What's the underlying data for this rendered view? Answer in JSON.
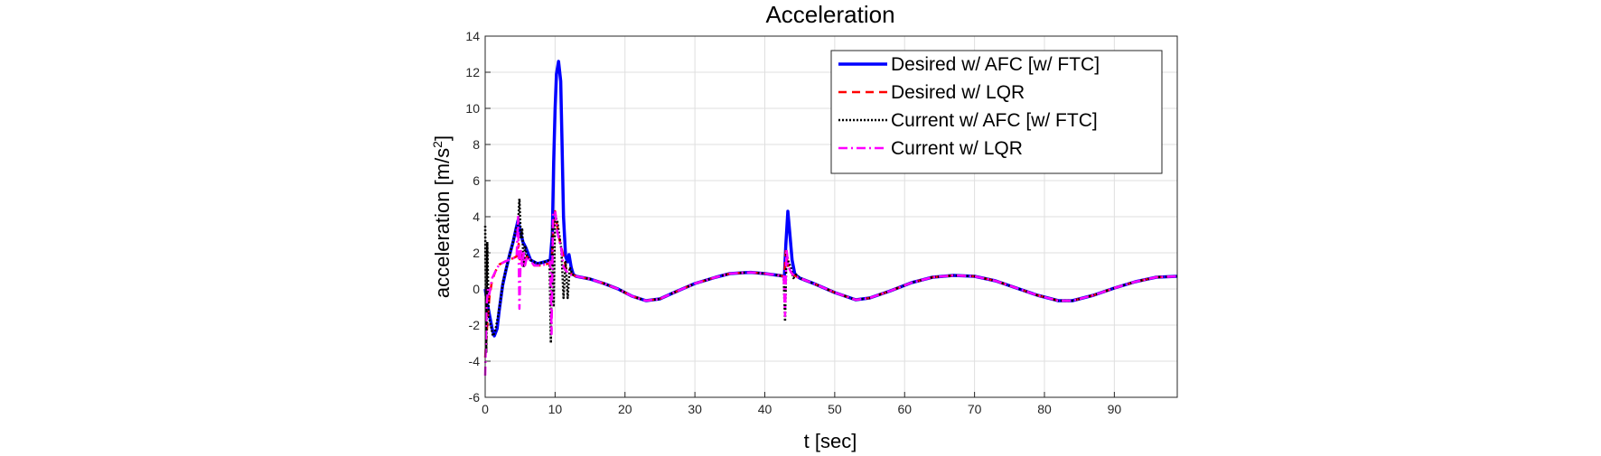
{
  "chart_data": {
    "type": "line",
    "title": "Acceleration",
    "xlabel": "t [sec]",
    "ylabel": {
      "main": "acceleration [m/s",
      "sup": "2",
      "end": "]"
    },
    "xlim": [
      0,
      99
    ],
    "ylim": [
      -6,
      14
    ],
    "xticks": [
      0,
      10,
      20,
      30,
      40,
      50,
      60,
      70,
      80,
      90
    ],
    "yticks": [
      -6,
      -4,
      -2,
      0,
      2,
      4,
      6,
      8,
      10,
      12,
      14
    ],
    "grid": true,
    "legend_position": "top-right",
    "series": [
      {
        "name": "Desired w/ AFC [w/ FTC]",
        "color": "#0000ff",
        "style": "solid",
        "points": [
          [
            0,
            0
          ],
          [
            0.3,
            -0.8
          ],
          [
            0.6,
            -1.4
          ],
          [
            1,
            -2.2
          ],
          [
            1.3,
            -2.6
          ],
          [
            1.7,
            -2.2
          ],
          [
            2,
            -1.2
          ],
          [
            2.5,
            0.2
          ],
          [
            3,
            1.1
          ],
          [
            3.5,
            1.9
          ],
          [
            4,
            2.6
          ],
          [
            4.4,
            3.3
          ],
          [
            4.7,
            3.8
          ],
          [
            5,
            3.2
          ],
          [
            5.4,
            2.6
          ],
          [
            5.8,
            2.3
          ],
          [
            6.5,
            1.6
          ],
          [
            7.5,
            1.4
          ],
          [
            8.5,
            1.5
          ],
          [
            9.3,
            1.6
          ],
          [
            9.6,
            3
          ],
          [
            9.8,
            7
          ],
          [
            10,
            10
          ],
          [
            10.2,
            11.9
          ],
          [
            10.5,
            12.6
          ],
          [
            10.8,
            11.5
          ],
          [
            11,
            8
          ],
          [
            11.2,
            4
          ],
          [
            11.5,
            1.8
          ],
          [
            11.8,
            1.5
          ],
          [
            12,
            1.9
          ],
          [
            12.3,
            1.2
          ],
          [
            12.6,
            0.8
          ],
          [
            13,
            0.7
          ],
          [
            15,
            0.55
          ],
          [
            17,
            0.3
          ],
          [
            19,
            0
          ],
          [
            21,
            -0.4
          ],
          [
            23,
            -0.65
          ],
          [
            25,
            -0.55
          ],
          [
            27,
            -0.2
          ],
          [
            30,
            0.3
          ],
          [
            33,
            0.65
          ],
          [
            35,
            0.85
          ],
          [
            37,
            0.9
          ],
          [
            38,
            0.92
          ],
          [
            40,
            0.85
          ],
          [
            42,
            0.75
          ],
          [
            42.8,
            0.7
          ],
          [
            43,
            2.4
          ],
          [
            43.3,
            4.3
          ],
          [
            43.6,
            3
          ],
          [
            43.9,
            1.6
          ],
          [
            44.3,
            0.8
          ],
          [
            45,
            0.6
          ],
          [
            47,
            0.3
          ],
          [
            50,
            -0.2
          ],
          [
            53,
            -0.6
          ],
          [
            55,
            -0.5
          ],
          [
            58,
            -0.1
          ],
          [
            61,
            0.35
          ],
          [
            64,
            0.65
          ],
          [
            67,
            0.75
          ],
          [
            70,
            0.7
          ],
          [
            73,
            0.45
          ],
          [
            76,
            0.05
          ],
          [
            79,
            -0.35
          ],
          [
            82,
            -0.65
          ],
          [
            84,
            -0.65
          ],
          [
            87,
            -0.35
          ],
          [
            90,
            0.05
          ],
          [
            93,
            0.4
          ],
          [
            96,
            0.65
          ],
          [
            99,
            0.7
          ]
        ]
      },
      {
        "name": "Desired w/ LQR",
        "color": "#ff0000",
        "style": "dashed",
        "points": [
          [
            0,
            -3.8
          ],
          [
            0.3,
            -2
          ],
          [
            0.6,
            -0.5
          ],
          [
            1,
            0.5
          ],
          [
            1.5,
            1
          ],
          [
            2,
            1.35
          ],
          [
            3,
            1.55
          ],
          [
            4,
            1.7
          ],
          [
            4.5,
            1.8
          ],
          [
            4.8,
            2.5
          ],
          [
            5,
            1.5
          ],
          [
            5.3,
            1.9
          ],
          [
            5.6,
            1.5
          ],
          [
            6,
            1.8
          ],
          [
            7,
            1.3
          ],
          [
            8,
            1.3
          ],
          [
            9,
            1.4
          ],
          [
            9.5,
            1.5
          ],
          [
            9.8,
            3.6
          ],
          [
            10,
            4.3
          ],
          [
            10.3,
            3.5
          ],
          [
            10.6,
            2.8
          ],
          [
            10.9,
            2.3
          ],
          [
            11.2,
            1.8
          ],
          [
            11.6,
            1.1
          ],
          [
            12,
            0.9
          ],
          [
            13,
            0.7
          ],
          [
            15,
            0.55
          ],
          [
            17,
            0.3
          ],
          [
            19,
            0
          ],
          [
            21,
            -0.4
          ],
          [
            23,
            -0.65
          ],
          [
            25,
            -0.55
          ],
          [
            27,
            -0.2
          ],
          [
            30,
            0.3
          ],
          [
            33,
            0.65
          ],
          [
            35,
            0.85
          ],
          [
            37,
            0.9
          ],
          [
            38,
            0.92
          ],
          [
            40,
            0.85
          ],
          [
            42,
            0.75
          ],
          [
            42.8,
            0.7
          ],
          [
            43,
            2.1
          ],
          [
            43.3,
            1.3
          ],
          [
            43.6,
            1
          ],
          [
            44,
            0.8
          ],
          [
            45,
            0.6
          ],
          [
            47,
            0.3
          ],
          [
            50,
            -0.2
          ],
          [
            53,
            -0.6
          ],
          [
            55,
            -0.5
          ],
          [
            58,
            -0.1
          ],
          [
            61,
            0.35
          ],
          [
            64,
            0.65
          ],
          [
            67,
            0.75
          ],
          [
            70,
            0.7
          ],
          [
            73,
            0.45
          ],
          [
            76,
            0.05
          ],
          [
            79,
            -0.35
          ],
          [
            82,
            -0.65
          ],
          [
            84,
            -0.65
          ],
          [
            87,
            -0.35
          ],
          [
            90,
            0.05
          ],
          [
            93,
            0.4
          ],
          [
            96,
            0.65
          ],
          [
            99,
            0.7
          ]
        ]
      },
      {
        "name": "Current w/ AFC [w/ FTC]",
        "color": "#000000",
        "style": "dotted",
        "points": [
          [
            0,
            3.5
          ],
          [
            0.15,
            -3.5
          ],
          [
            0.3,
            2.6
          ],
          [
            0.5,
            -1.5
          ],
          [
            0.8,
            -2
          ],
          [
            1.1,
            -2.6
          ],
          [
            1.4,
            -2.4
          ],
          [
            1.8,
            -1.6
          ],
          [
            2.2,
            -0.6
          ],
          [
            2.6,
            0.5
          ],
          [
            3,
            1.1
          ],
          [
            3.5,
            1.9
          ],
          [
            4,
            2.6
          ],
          [
            4.4,
            3.3
          ],
          [
            4.7,
            3.6
          ],
          [
            4.9,
            5
          ],
          [
            5.1,
            2.8
          ],
          [
            5.3,
            3.3
          ],
          [
            5.5,
            1.2
          ],
          [
            5.7,
            2.4
          ],
          [
            6,
            1.8
          ],
          [
            6.5,
            1.6
          ],
          [
            7.5,
            1.4
          ],
          [
            8.5,
            1.5
          ],
          [
            9.2,
            1.6
          ],
          [
            9.4,
            -3
          ],
          [
            9.6,
            3.5
          ],
          [
            9.8,
            -1
          ],
          [
            10,
            4
          ],
          [
            10.3,
            3.8
          ],
          [
            10.6,
            3
          ],
          [
            10.9,
            2.2
          ],
          [
            11.2,
            -0.5
          ],
          [
            11.5,
            1.5
          ],
          [
            11.8,
            -0.5
          ],
          [
            12.1,
            1.2
          ],
          [
            12.5,
            0.8
          ],
          [
            13,
            0.7
          ],
          [
            15,
            0.55
          ],
          [
            17,
            0.3
          ],
          [
            19,
            0
          ],
          [
            21,
            -0.4
          ],
          [
            23,
            -0.65
          ],
          [
            25,
            -0.55
          ],
          [
            27,
            -0.2
          ],
          [
            30,
            0.3
          ],
          [
            33,
            0.65
          ],
          [
            35,
            0.85
          ],
          [
            37,
            0.9
          ],
          [
            38,
            0.92
          ],
          [
            40,
            0.85
          ],
          [
            42,
            0.75
          ],
          [
            42.7,
            0.7
          ],
          [
            42.9,
            -1.8
          ],
          [
            43.1,
            2
          ],
          [
            43.4,
            1.5
          ],
          [
            43.7,
            1.2
          ],
          [
            44.1,
            0.6
          ],
          [
            44.5,
            0.8
          ],
          [
            45,
            0.6
          ],
          [
            47,
            0.3
          ],
          [
            50,
            -0.2
          ],
          [
            53,
            -0.6
          ],
          [
            55,
            -0.5
          ],
          [
            58,
            -0.1
          ],
          [
            61,
            0.35
          ],
          [
            64,
            0.65
          ],
          [
            67,
            0.75
          ],
          [
            70,
            0.7
          ],
          [
            73,
            0.45
          ],
          [
            76,
            0.05
          ],
          [
            79,
            -0.35
          ],
          [
            82,
            -0.65
          ],
          [
            84,
            -0.65
          ],
          [
            87,
            -0.35
          ],
          [
            90,
            0.05
          ],
          [
            93,
            0.4
          ],
          [
            96,
            0.65
          ],
          [
            99,
            0.7
          ]
        ]
      },
      {
        "name": "Current w/ LQR",
        "color": "#ff00ff",
        "style": "dashdot",
        "points": [
          [
            0,
            -4.8
          ],
          [
            0.2,
            -1
          ],
          [
            0.4,
            0
          ],
          [
            0.6,
            -0.3
          ],
          [
            1,
            0.6
          ],
          [
            1.5,
            1
          ],
          [
            2,
            1.35
          ],
          [
            3,
            1.55
          ],
          [
            4,
            1.7
          ],
          [
            4.5,
            1.8
          ],
          [
            4.7,
            4
          ],
          [
            4.9,
            -1.1
          ],
          [
            5.1,
            2.2
          ],
          [
            5.3,
            1.2
          ],
          [
            5.5,
            2
          ],
          [
            5.7,
            1.3
          ],
          [
            6,
            1.8
          ],
          [
            7,
            1.3
          ],
          [
            8,
            1.3
          ],
          [
            9,
            1.4
          ],
          [
            9.3,
            1.5
          ],
          [
            9.5,
            -2.5
          ],
          [
            9.7,
            4.2
          ],
          [
            10,
            4.3
          ],
          [
            10.3,
            3.2
          ],
          [
            10.6,
            2.7
          ],
          [
            10.9,
            2.2
          ],
          [
            11.2,
            1.2
          ],
          [
            11.6,
            1
          ],
          [
            12,
            0.8
          ],
          [
            13,
            0.7
          ],
          [
            15,
            0.55
          ],
          [
            17,
            0.3
          ],
          [
            19,
            0
          ],
          [
            21,
            -0.4
          ],
          [
            23,
            -0.65
          ],
          [
            25,
            -0.55
          ],
          [
            27,
            -0.2
          ],
          [
            30,
            0.3
          ],
          [
            33,
            0.65
          ],
          [
            35,
            0.85
          ],
          [
            37,
            0.9
          ],
          [
            38,
            0.92
          ],
          [
            40,
            0.85
          ],
          [
            42,
            0.75
          ],
          [
            42.7,
            0.7
          ],
          [
            42.9,
            -1.5
          ],
          [
            43.1,
            2.2
          ],
          [
            43.4,
            1.2
          ],
          [
            43.8,
            0.9
          ],
          [
            44.2,
            0.7
          ],
          [
            45,
            0.6
          ],
          [
            47,
            0.3
          ],
          [
            50,
            -0.2
          ],
          [
            53,
            -0.6
          ],
          [
            55,
            -0.5
          ],
          [
            58,
            -0.1
          ],
          [
            61,
            0.35
          ],
          [
            64,
            0.65
          ],
          [
            67,
            0.75
          ],
          [
            70,
            0.7
          ],
          [
            73,
            0.45
          ],
          [
            76,
            0.05
          ],
          [
            79,
            -0.35
          ],
          [
            82,
            -0.65
          ],
          [
            84,
            -0.65
          ],
          [
            87,
            -0.35
          ],
          [
            90,
            0.05
          ],
          [
            93,
            0.4
          ],
          [
            96,
            0.65
          ],
          [
            99,
            0.7
          ]
        ]
      }
    ]
  }
}
